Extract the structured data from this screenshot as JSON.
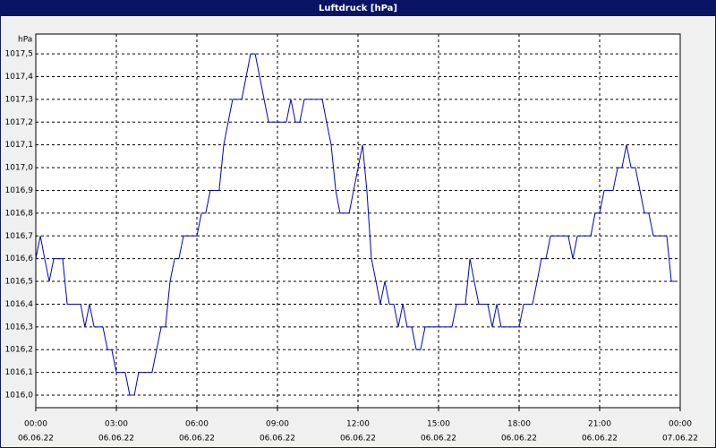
{
  "chart_data": {
    "type": "line",
    "title": "Luftdruck [hPa]",
    "y_unit": "hPa",
    "x": [
      0,
      0.17,
      0.33,
      0.5,
      0.67,
      1,
      1.17,
      1.67,
      1.83,
      2,
      2.17,
      2.5,
      2.67,
      2.83,
      3,
      3.33,
      3.5,
      3.67,
      3.83,
      4.33,
      4.67,
      4.83,
      5,
      5.17,
      5.33,
      5.5,
      6,
      6.17,
      6.33,
      6.5,
      6.83,
      7,
      7.33,
      7.67,
      8,
      8.17,
      8.67,
      9.33,
      9.5,
      9.67,
      9.83,
      10,
      10.67,
      10.83,
      11,
      11.17,
      11.33,
      11.67,
      12.17,
      12.33,
      12.5,
      12.67,
      12.83,
      13,
      13.17,
      13.33,
      13.5,
      13.67,
      13.83,
      14,
      14.17,
      14.33,
      14.5,
      15.5,
      15.67,
      16,
      16.17,
      16.33,
      16.5,
      16.83,
      17,
      17.17,
      17.33,
      18,
      18.17,
      18.5,
      18.67,
      18.83,
      19,
      19.17,
      19.83,
      20,
      20.17,
      20.67,
      20.83,
      21,
      21.17,
      21.5,
      21.67,
      21.83,
      22,
      22.17,
      22.33,
      22.5,
      22.67,
      22.83,
      23,
      23.5,
      23.67,
      23.83
    ],
    "series": [
      {
        "name": "Luftdruck",
        "color": "#0000c8",
        "values": [
          1016.6,
          1016.7,
          1016.6,
          1016.5,
          1016.6,
          1016.6,
          1016.4,
          1016.4,
          1016.3,
          1016.4,
          1016.3,
          1016.3,
          1016.2,
          1016.2,
          1016.1,
          1016.1,
          1016.0,
          1016.0,
          1016.1,
          1016.1,
          1016.3,
          1016.3,
          1016.5,
          1016.6,
          1016.6,
          1016.7,
          1016.7,
          1016.8,
          1016.8,
          1016.9,
          1016.9,
          1017.1,
          1017.3,
          1017.3,
          1017.5,
          1017.5,
          1017.2,
          1017.2,
          1017.3,
          1017.2,
          1017.2,
          1017.3,
          1017.3,
          1017.2,
          1017.1,
          1016.9,
          1016.8,
          1016.8,
          1017.1,
          1016.9,
          1016.6,
          1016.5,
          1016.4,
          1016.5,
          1016.4,
          1016.4,
          1016.3,
          1016.4,
          1016.3,
          1016.3,
          1016.2,
          1016.2,
          1016.3,
          1016.3,
          1016.4,
          1016.4,
          1016.6,
          1016.5,
          1016.4,
          1016.4,
          1016.3,
          1016.4,
          1016.3,
          1016.3,
          1016.4,
          1016.4,
          1016.5,
          1016.6,
          1016.6,
          1016.7,
          1016.7,
          1016.6,
          1016.7,
          1016.7,
          1016.8,
          1016.8,
          1016.9,
          1016.9,
          1017.0,
          1017.0,
          1017.1,
          1017.0,
          1017.0,
          1016.9,
          1016.8,
          1016.8,
          1016.7,
          1016.7,
          1016.5,
          1016.5
        ]
      }
    ],
    "xlim": [
      0,
      24
    ],
    "xticks": [
      {
        "value": 0,
        "label": "00:00"
      },
      {
        "value": 3,
        "label": "03:00"
      },
      {
        "value": 6,
        "label": "06:00"
      },
      {
        "value": 9,
        "label": "09:00"
      },
      {
        "value": 12,
        "label": "12:00"
      },
      {
        "value": 15,
        "label": "15:00"
      },
      {
        "value": 18,
        "label": "18:00"
      },
      {
        "value": 21,
        "label": "21:00"
      },
      {
        "value": 24,
        "label": "00:00"
      }
    ],
    "xtick_dates": [
      "06.06.22",
      "06.06.22",
      "06.06.22",
      "06.06.22",
      "06.06.22",
      "06.06.22",
      "06.06.22",
      "06.06.22",
      "07.06.22"
    ],
    "ylim": [
      1015.945,
      1017.587
    ],
    "yticks": [
      {
        "value": 1016.0,
        "label": "1016,0"
      },
      {
        "value": 1016.1,
        "label": "1016,1"
      },
      {
        "value": 1016.2,
        "label": "1016,2"
      },
      {
        "value": 1016.3,
        "label": "1016,3"
      },
      {
        "value": 1016.4,
        "label": "1016,4"
      },
      {
        "value": 1016.5,
        "label": "1016,5"
      },
      {
        "value": 1016.6,
        "label": "1016,6"
      },
      {
        "value": 1016.7,
        "label": "1016,7"
      },
      {
        "value": 1016.8,
        "label": "1016,8"
      },
      {
        "value": 1016.9,
        "label": "1016,9"
      },
      {
        "value": 1017.0,
        "label": "1017,0"
      },
      {
        "value": 1017.1,
        "label": "1017,1"
      },
      {
        "value": 1017.2,
        "label": "1017,2"
      },
      {
        "value": 1017.3,
        "label": "1017,3"
      },
      {
        "value": 1017.4,
        "label": "1017,4"
      },
      {
        "value": 1017.5,
        "label": "1017,5"
      }
    ],
    "grid": true
  }
}
